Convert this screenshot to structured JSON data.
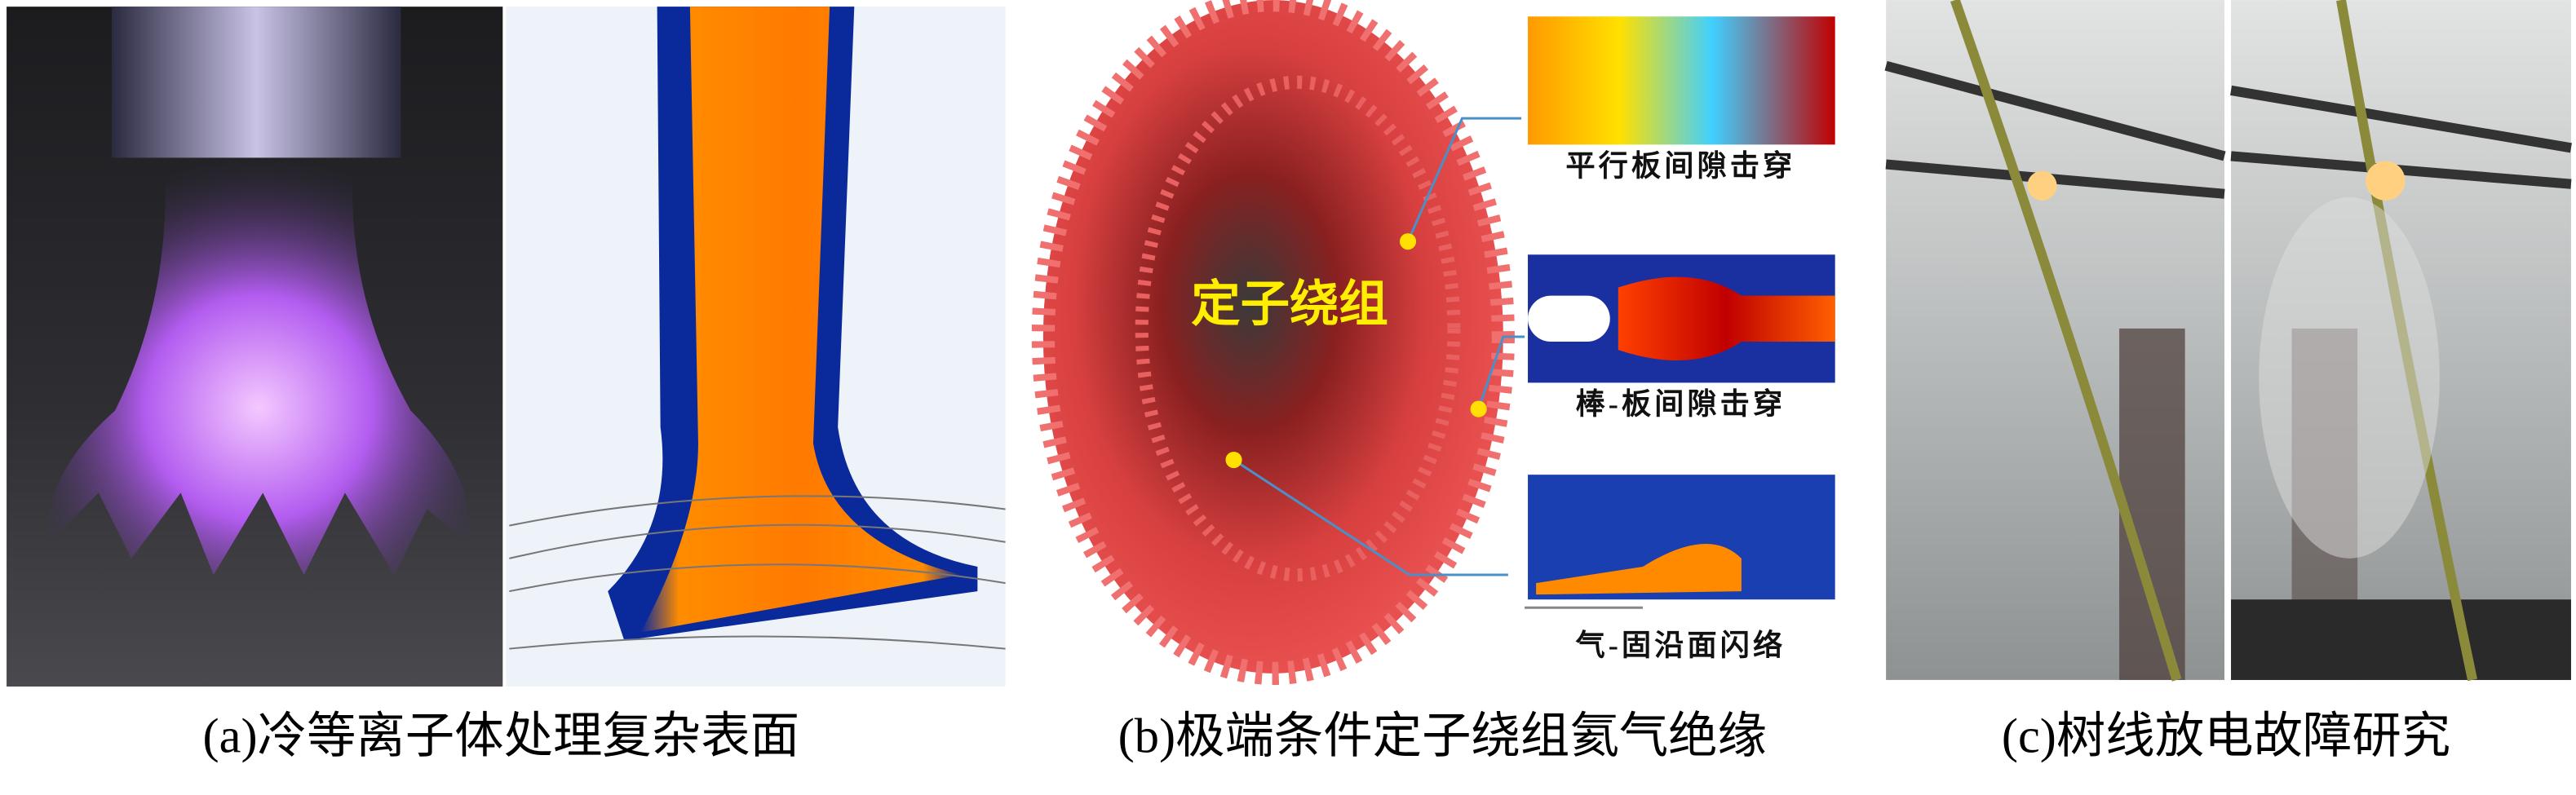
{
  "panel_a": {
    "caption": "(a)冷等离子体处理复杂表面"
  },
  "panel_b": {
    "caption": "(b)极端条件定子绕组氦气绝缘",
    "stator_label": "定子绕组",
    "insets": [
      {
        "label": "平行板间隙击穿"
      },
      {
        "label": "棒-板间隙击穿"
      },
      {
        "label": "气-固沿面闪络"
      }
    ]
  },
  "panel_c": {
    "caption": "(c)树线放电故障研究"
  }
}
